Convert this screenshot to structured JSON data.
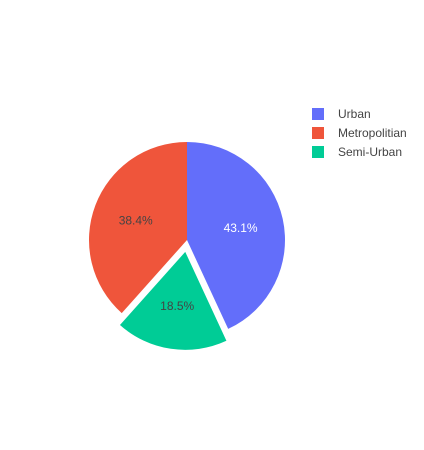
{
  "chart_data": {
    "type": "pie",
    "slices": [
      {
        "label": "Urban",
        "value": 43.1,
        "label_text": "43.1%",
        "color": "#636efa",
        "pulled": false
      },
      {
        "label": "Semi-Urban",
        "value": 18.5,
        "label_text": "18.5%",
        "color": "#00cc96",
        "pulled": true
      },
      {
        "label": "Metropolitian",
        "value": 38.4,
        "label_text": "38.4%",
        "color": "#ef553b",
        "pulled": false
      }
    ],
    "legend": {
      "placement": "right",
      "items": [
        {
          "label": "Urban",
          "color": "#636efa"
        },
        {
          "label": "Metropolitian",
          "color": "#ef553b"
        },
        {
          "label": "Semi-Urban",
          "color": "#00cc96"
        }
      ]
    }
  }
}
